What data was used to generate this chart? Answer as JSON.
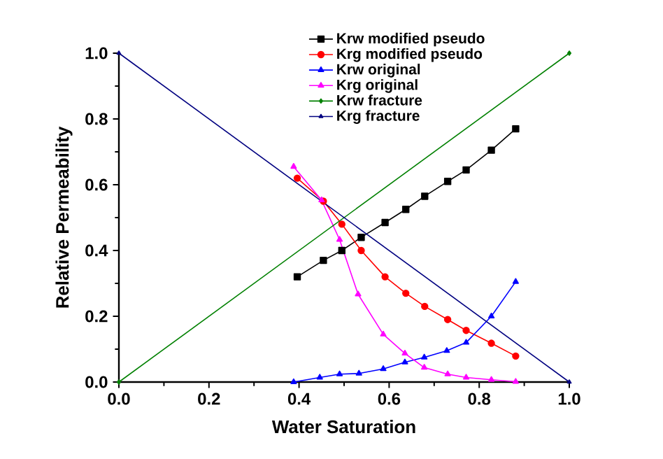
{
  "chart_data": {
    "type": "line",
    "xlabel": "Water Saturation",
    "ylabel": "Relative Permeability",
    "xlim": [
      0,
      1
    ],
    "ylim": [
      0,
      1
    ],
    "xticks": [
      {
        "value": 0,
        "label": "0.0"
      },
      {
        "value": 0.2,
        "label": "0.2"
      },
      {
        "value": 0.4,
        "label": "0.4"
      },
      {
        "value": 0.6,
        "label": "0.6"
      },
      {
        "value": 0.8,
        "label": "0.8"
      },
      {
        "value": 1,
        "label": "1.0"
      }
    ],
    "yticks": [
      {
        "value": 0,
        "label": "0.0"
      },
      {
        "value": 0.2,
        "label": "0.2"
      },
      {
        "value": 0.4,
        "label": "0.4"
      },
      {
        "value": 0.6,
        "label": "0.6"
      },
      {
        "value": 0.8,
        "label": "0.8"
      },
      {
        "value": 1,
        "label": "1.0"
      }
    ],
    "grid": false,
    "legend": "top",
    "line_style": "solid",
    "series": [
      {
        "name": "Krw modified pseudo",
        "color": "#000000",
        "marker": "square",
        "x": [
          0.396,
          0.454,
          0.495,
          0.538,
          0.591,
          0.637,
          0.679,
          0.73,
          0.771,
          0.827,
          0.881
        ],
        "values": [
          0.32,
          0.37,
          0.4,
          0.44,
          0.485,
          0.525,
          0.565,
          0.61,
          0.645,
          0.705,
          0.77
        ]
      },
      {
        "name": "Krg modified pseudo",
        "color": "#ff0000",
        "marker": "circle",
        "x": [
          0.396,
          0.454,
          0.495,
          0.538,
          0.591,
          0.637,
          0.679,
          0.73,
          0.771,
          0.827,
          0.881
        ],
        "values": [
          0.62,
          0.55,
          0.48,
          0.4,
          0.32,
          0.27,
          0.23,
          0.19,
          0.157,
          0.118,
          0.079
        ]
      },
      {
        "name": "Krw original",
        "color": "#0000ff",
        "marker": "triangle",
        "x": [
          0.388,
          0.446,
          0.49,
          0.533,
          0.587,
          0.635,
          0.678,
          0.728,
          0.771,
          0.827,
          0.881
        ],
        "values": [
          0,
          0.014,
          0.024,
          0.026,
          0.04,
          0.06,
          0.075,
          0.095,
          0.12,
          0.2,
          0.305
        ]
      },
      {
        "name": "Krg original",
        "color": "#ff00ff",
        "marker": "triangle",
        "x": [
          0.388,
          0.45,
          0.49,
          0.531,
          0.587,
          0.635,
          0.678,
          0.73,
          0.771,
          0.827,
          0.881
        ],
        "values": [
          0.655,
          0.553,
          0.433,
          0.267,
          0.145,
          0.087,
          0.044,
          0.024,
          0.014,
          0.007,
          0.001
        ]
      },
      {
        "name": "Krw fracture",
        "color": "#008000",
        "marker": "diamond",
        "x": [
          0,
          1
        ],
        "values": [
          0,
          1
        ]
      },
      {
        "name": "Krg fracture",
        "color": "#000080",
        "marker": "triangle",
        "x": [
          0,
          1
        ],
        "values": [
          1,
          0
        ]
      }
    ]
  }
}
